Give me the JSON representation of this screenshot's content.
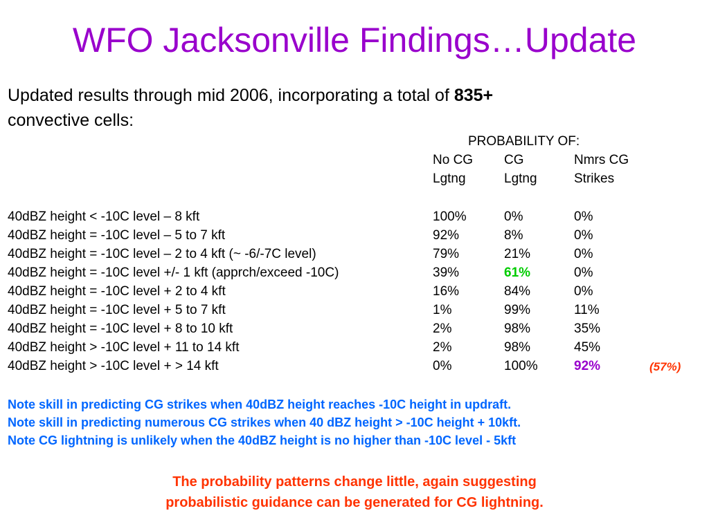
{
  "title": "WFO Jacksonville Findings…Update",
  "intro": {
    "text": "Updated results through mid 2006, incorporating a total of",
    "bold": "835+",
    "text2": "convective cells:"
  },
  "table": {
    "prob_title": "PROBABILITY OF:",
    "headers_line1": [
      "No CG",
      "CG",
      "Nmrs CG"
    ],
    "headers_line2": [
      "Lgtng",
      "Lgtng",
      "Strikes"
    ],
    "rows": [
      {
        "label": "40dBZ height < -10C level – 8 kft",
        "no_cg": "100%",
        "cg": "0%",
        "nmrs": "0%"
      },
      {
        "label": "40dBZ height = -10C level – 5 to 7 kft",
        "no_cg": "92%",
        "cg": "8%",
        "nmrs": "0%"
      },
      {
        "label": "40dBZ height = -10C level – 2 to 4 kft (~ -6/-7C level)",
        "no_cg": "79%",
        "cg": "21%",
        "nmrs": "0%"
      },
      {
        "label": "40dBZ height = -10C level +/- 1 kft  (apprch/exceed -10C)",
        "no_cg": "39%",
        "cg": "61%",
        "nmrs": "0%"
      },
      {
        "label": "40dBZ height = -10C level + 2 to 4 kft",
        "no_cg": "16%",
        "cg": "84%",
        "nmrs": "0%"
      },
      {
        "label": "40dBZ height = -10C level + 5 to 7 kft",
        "no_cg": "1%",
        "cg": "99%",
        "nmrs": "11%"
      },
      {
        "label": "40dBZ height = -10C level + 8 to 10 kft",
        "no_cg": "2%",
        "cg": "98%",
        "nmrs": "35%"
      },
      {
        "label": "40dBZ height > -10C level + 11 to 14 kft",
        "no_cg": "2%",
        "cg": "98%",
        "nmrs": "45%"
      },
      {
        "label": "40dBZ height > -10C level + > 14 kft",
        "no_cg": "0%",
        "cg": "100%",
        "nmrs": "92%",
        "extra": "(57%)"
      }
    ]
  },
  "notes": [
    "Note skill in predicting CG strikes when 40dBZ height reaches -10C height in updraft.",
    "Note skill in predicting numerous CG strikes when 40 dBZ height > -10C height + 10kft.",
    "Note CG lightning is unlikely when the 40dBZ height is no higher than -10C level - 5kft"
  ],
  "conclusion": [
    "The probability patterns change little, again suggesting",
    "probabilistic guidance can be generated for CG lightning."
  ],
  "colors": {
    "title": "#9900cc",
    "notes": "#0066ff",
    "conclusion": "#ff3300",
    "highlight_green": "#00cc00",
    "highlight_purple": "#9900cc"
  }
}
